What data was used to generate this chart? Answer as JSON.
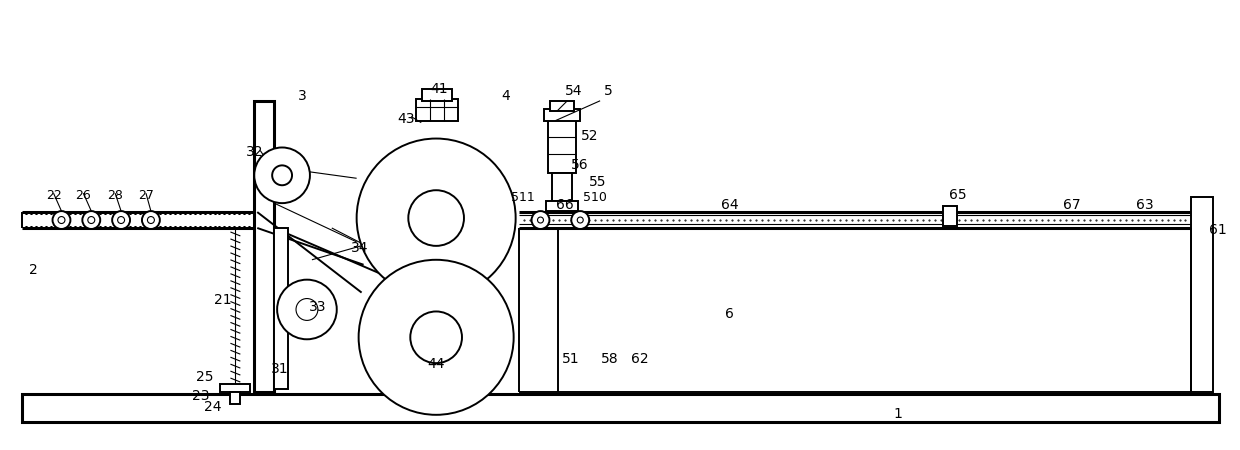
{
  "fig_width": 12.4,
  "fig_height": 4.5,
  "dpi": 100,
  "lc": "#000000",
  "bg": "#ffffff",
  "lw": 1.4,
  "lwt": 2.2,
  "lwn": 0.8
}
